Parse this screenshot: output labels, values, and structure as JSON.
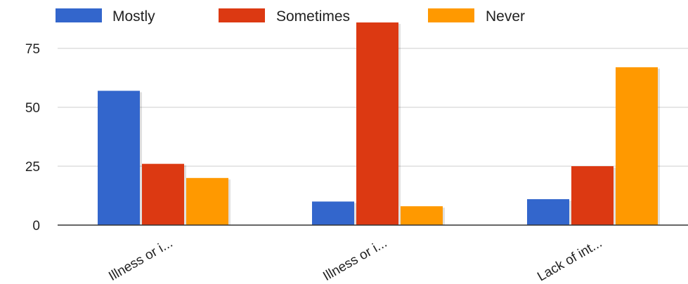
{
  "chart_data": {
    "type": "bar",
    "categories": [
      "Illness or i...",
      "Illness or i...",
      "Lack of int..."
    ],
    "series": [
      {
        "name": "Mostly",
        "color": "#3366cc",
        "values": [
          57,
          10,
          11
        ]
      },
      {
        "name": "Sometimes",
        "color": "#dc3912",
        "values": [
          26,
          86,
          25
        ]
      },
      {
        "name": "Never",
        "color": "#ff9900",
        "values": [
          20,
          8,
          67
        ]
      }
    ],
    "y_ticks": [
      "0",
      "25",
      "50",
      "75"
    ],
    "ylim": [
      0,
      86
    ],
    "grid": true,
    "legend_position": "top"
  }
}
